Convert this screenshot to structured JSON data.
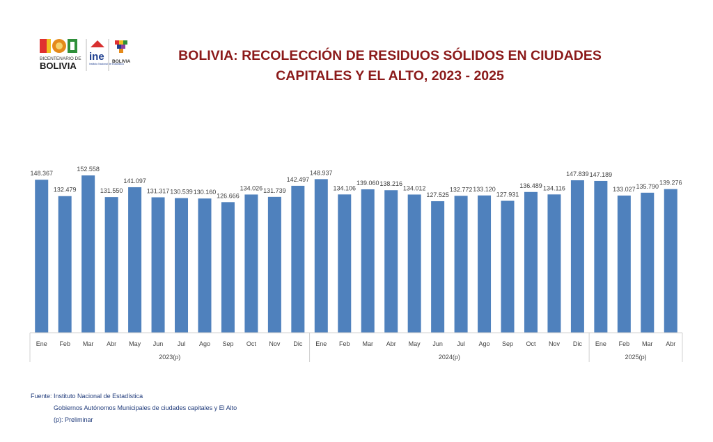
{
  "header": {
    "title_line1": "BOLIVIA: RECOLECCIÓN DE RESIDUOS SÓLIDOS EN CIUDADES",
    "title_line2": "CAPITALES Y EL ALTO, 2023 - 2025"
  },
  "logos": {
    "bicentenario_small": "BICENTENARIO DE",
    "bicentenario_big": "BOLIVIA",
    "ine": "ine",
    "ine_sub": "Instituto Nacional de Estadística",
    "estado": "BOLIVIA"
  },
  "colors": {
    "bar": "#4f81bd",
    "title": "#8b1a1a",
    "notes": "#1f3a7a"
  },
  "chart_data": {
    "type": "bar",
    "categories": [
      "Ene",
      "Feb",
      "Mar",
      "Abr",
      "May",
      "Jun",
      "Jul",
      "Ago",
      "Sep",
      "Oct",
      "Nov",
      "Dic",
      "Ene",
      "Feb",
      "Mar",
      "Abr",
      "May",
      "Jun",
      "Jul",
      "Ago",
      "Sep",
      "Oct",
      "Nov",
      "Dic",
      "Ene",
      "Feb",
      "Mar",
      "Abr"
    ],
    "groups": [
      {
        "label": "2023(p)",
        "count": 12
      },
      {
        "label": "2024(p)",
        "count": 12
      },
      {
        "label": "2025(p)",
        "count": 4
      }
    ],
    "values": [
      148367,
      132479,
      152558,
      131550,
      141097,
      131317,
      130539,
      130160,
      126666,
      134026,
      131739,
      142497,
      148937,
      134106,
      139060,
      138216,
      134012,
      127525,
      132772,
      133120,
      127931,
      136489,
      134116,
      147839,
      147189,
      133027,
      135790,
      139276
    ],
    "labels": [
      "148.367",
      "132.479",
      "152.558",
      "131.550",
      "141.097",
      "131.317",
      "130.539",
      "130.160",
      "126.666",
      "134.026",
      "131.739",
      "142.497",
      "148.937",
      "134.106",
      "139.060",
      "138.216",
      "134.012",
      "127.525",
      "132.772",
      "133.120",
      "127.931",
      "136.489",
      "134.116",
      "147.839",
      "147.189",
      "133.027",
      "135.790",
      "139.276"
    ],
    "ylim": [
      0,
      152558
    ],
    "grid": false,
    "legend": "none"
  },
  "notes": {
    "source": "Fuente:  Instituto Nacional de Estadística",
    "source2": "Gobiernos Autónomos Municipales de ciudades capitales y El Alto",
    "prelim": "(p): Preliminar"
  }
}
